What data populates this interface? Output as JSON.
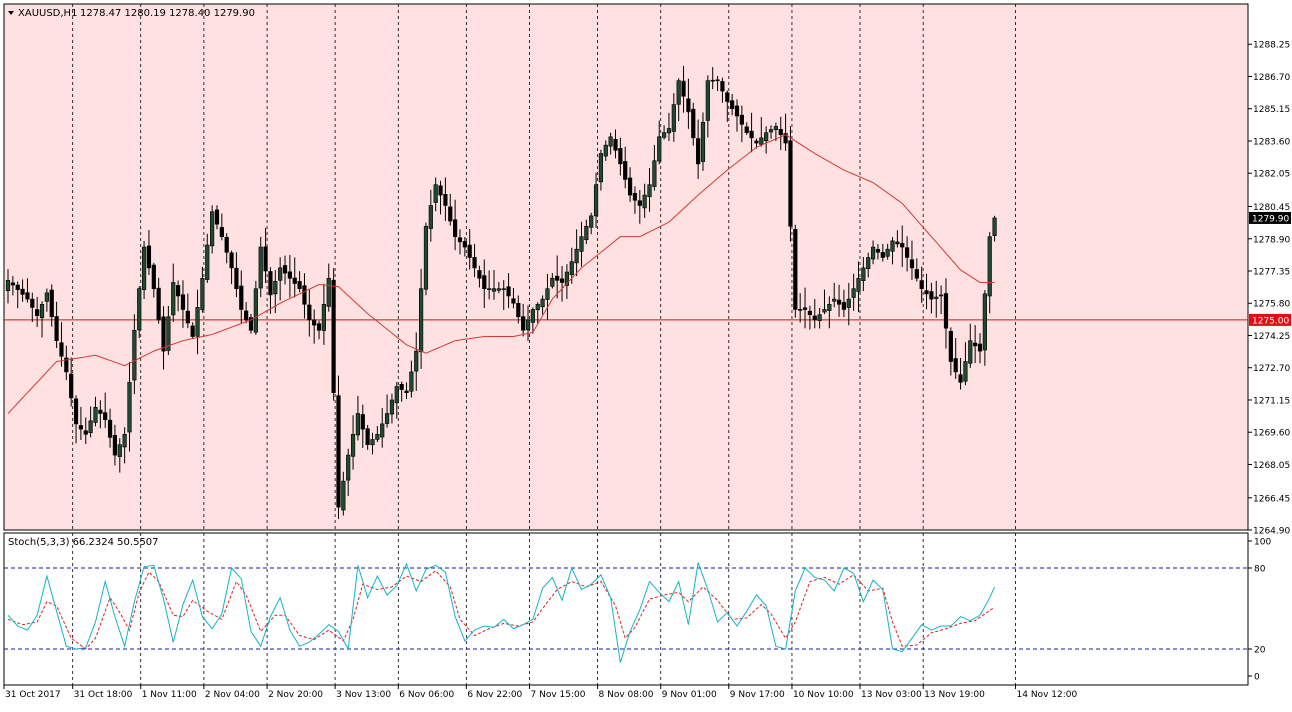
{
  "header": {
    "symbol_label": "XAUUSD,H1",
    "ohlc_label": "1278.47 1280.19 1278.40 1279.90"
  },
  "stoch": {
    "label": "Stoch(5,3,3) 66.2324 50.5507"
  },
  "colors": {
    "chart_background": "#ffe1e1",
    "up_candle": "#1f4a2f",
    "down_candle": "#000000",
    "ma_line": "#d43a3a",
    "horizontal_line": "#e01010",
    "stoch_main": "#14b4c8",
    "stoch_signal": "#e02020",
    "stoch_level": "#1a1aa0"
  },
  "chart_data": [
    {
      "type": "candlestick",
      "ylim": [
        1264.9,
        1289.8
      ],
      "y_ticks": [
        "1288.25",
        "1286.70",
        "1285.15",
        "1283.60",
        "1282.05",
        "1280.45",
        "1278.90",
        "1277.35",
        "1275.80",
        "1274.25",
        "1272.70",
        "1271.15",
        "1269.60",
        "1268.05",
        "1266.45",
        "1264.90"
      ],
      "x_tick_labels": [
        "31 Oct 2017",
        "31 Oct 18:00",
        "1 Nov 11:00",
        "2 Nov 04:00",
        "2 Nov 20:00",
        "3 Nov 13:00",
        "6 Nov 06:00",
        "6 Nov 22:00",
        "7 Nov 15:00",
        "8 Nov 08:00",
        "9 Nov 01:00",
        "9 Nov 17:00",
        "10 Nov 10:00",
        "13 Nov 03:00",
        "13 Nov 19:00",
        "14 Nov 12:00"
      ],
      "current_price": "1279.90",
      "horizontal_line_price": "1275.00",
      "close_path": [
        [
          0,
          1276.9
        ],
        [
          4,
          1276.0
        ],
        [
          6,
          1275.2
        ],
        [
          8,
          1276.3
        ],
        [
          10,
          1274.0
        ],
        [
          12,
          1272.5
        ],
        [
          14,
          1270.0
        ],
        [
          16,
          1269.5
        ],
        [
          18,
          1270.8
        ],
        [
          20,
          1270.2
        ],
        [
          22,
          1268.5
        ],
        [
          24,
          1269.5
        ],
        [
          26,
          1274.5
        ],
        [
          28,
          1278.5
        ],
        [
          30,
          1276.5
        ],
        [
          32,
          1273.5
        ],
        [
          34,
          1276.8
        ],
        [
          36,
          1275.5
        ],
        [
          38,
          1274.2
        ],
        [
          40,
          1277.0
        ],
        [
          42,
          1280.2
        ],
        [
          44,
          1279.0
        ],
        [
          46,
          1277.5
        ],
        [
          48,
          1275.5
        ],
        [
          50,
          1274.5
        ],
        [
          52,
          1278.5
        ],
        [
          54,
          1276.2
        ],
        [
          56,
          1277.5
        ],
        [
          58,
          1277.0
        ],
        [
          60,
          1276.5
        ],
        [
          62,
          1275.0
        ],
        [
          64,
          1274.5
        ],
        [
          66,
          1277.0
        ],
        [
          68,
          1266.0
        ],
        [
          70,
          1268.5
        ],
        [
          72,
          1270.5
        ],
        [
          74,
          1269.0
        ],
        [
          76,
          1269.5
        ],
        [
          78,
          1270.5
        ],
        [
          80,
          1271.8
        ],
        [
          82,
          1271.5
        ],
        [
          84,
          1273.5
        ],
        [
          86,
          1279.5
        ],
        [
          88,
          1281.5
        ],
        [
          90,
          1280.5
        ],
        [
          92,
          1279.0
        ],
        [
          94,
          1278.5
        ],
        [
          96,
          1277.5
        ],
        [
          98,
          1276.5
        ],
        [
          100,
          1276.5
        ],
        [
          102,
          1276.5
        ],
        [
          104,
          1275.8
        ],
        [
          106,
          1274.5
        ],
        [
          108,
          1275.5
        ],
        [
          110,
          1276.0
        ],
        [
          112,
          1277.0
        ],
        [
          114,
          1276.8
        ],
        [
          116,
          1277.8
        ],
        [
          118,
          1279.0
        ],
        [
          120,
          1280.0
        ],
        [
          122,
          1283.0
        ],
        [
          124,
          1283.8
        ],
        [
          126,
          1282.5
        ],
        [
          128,
          1281.0
        ],
        [
          130,
          1280.5
        ],
        [
          132,
          1281.5
        ],
        [
          134,
          1283.8
        ],
        [
          136,
          1284.2
        ],
        [
          138,
          1286.5
        ],
        [
          140,
          1285.0
        ],
        [
          142,
          1282.5
        ],
        [
          144,
          1286.5
        ],
        [
          146,
          1286.5
        ],
        [
          148,
          1285.5
        ],
        [
          150,
          1284.8
        ],
        [
          152,
          1284.0
        ],
        [
          154,
          1283.5
        ],
        [
          156,
          1284.0
        ],
        [
          158,
          1284.3
        ],
        [
          160,
          1283.5
        ],
        [
          162,
          1275.5
        ],
        [
          164,
          1275.5
        ],
        [
          166,
          1275.0
        ],
        [
          168,
          1275.5
        ],
        [
          170,
          1276.0
        ],
        [
          172,
          1275.5
        ],
        [
          174,
          1276.5
        ],
        [
          176,
          1277.5
        ],
        [
          178,
          1278.5
        ],
        [
          180,
          1278.0
        ],
        [
          182,
          1278.8
        ],
        [
          184,
          1278.5
        ],
        [
          186,
          1277.5
        ],
        [
          188,
          1276.5
        ],
        [
          190,
          1276.0
        ],
        [
          192,
          1276.2
        ],
        [
          194,
          1273.0
        ],
        [
          196,
          1272.0
        ],
        [
          198,
          1274.0
        ],
        [
          200,
          1273.5
        ],
        [
          202,
          1279.0
        ],
        [
          203,
          1279.9
        ]
      ],
      "ma_path": [
        [
          0,
          1270.5
        ],
        [
          10,
          1273.0
        ],
        [
          18,
          1273.3
        ],
        [
          24,
          1272.8
        ],
        [
          30,
          1273.5
        ],
        [
          36,
          1274.0
        ],
        [
          42,
          1274.3
        ],
        [
          50,
          1275.0
        ],
        [
          56,
          1275.8
        ],
        [
          64,
          1276.7
        ],
        [
          68,
          1276.6
        ],
        [
          74,
          1275.3
        ],
        [
          82,
          1273.8
        ],
        [
          86,
          1273.4
        ],
        [
          92,
          1274.0
        ],
        [
          98,
          1274.2
        ],
        [
          104,
          1274.2
        ],
        [
          108,
          1274.4
        ],
        [
          112,
          1276.0
        ],
        [
          118,
          1277.5
        ],
        [
          126,
          1279.0
        ],
        [
          130,
          1279.0
        ],
        [
          136,
          1279.7
        ],
        [
          142,
          1281.0
        ],
        [
          148,
          1282.2
        ],
        [
          154,
          1283.3
        ],
        [
          160,
          1283.9
        ],
        [
          166,
          1283.0
        ],
        [
          172,
          1282.2
        ],
        [
          178,
          1281.6
        ],
        [
          184,
          1280.6
        ],
        [
          190,
          1279.0
        ],
        [
          196,
          1277.4
        ],
        [
          200,
          1276.8
        ]
      ]
    },
    {
      "type": "line",
      "name": "Stoch(5,3,3)",
      "ylim": [
        0,
        100
      ],
      "levels": [
        20,
        80
      ],
      "y_ticks": [
        "100",
        "80",
        "20",
        "0"
      ],
      "main_path": [
        [
          0,
          45
        ],
        [
          2,
          37
        ],
        [
          4,
          34
        ],
        [
          6,
          45
        ],
        [
          8,
          74
        ],
        [
          10,
          48
        ],
        [
          12,
          22
        ],
        [
          14,
          20
        ],
        [
          16,
          21
        ],
        [
          18,
          40
        ],
        [
          20,
          70
        ],
        [
          22,
          44
        ],
        [
          24,
          22
        ],
        [
          26,
          55
        ],
        [
          28,
          81
        ],
        [
          30,
          82
        ],
        [
          32,
          57
        ],
        [
          34,
          25
        ],
        [
          36,
          53
        ],
        [
          38,
          71
        ],
        [
          40,
          44
        ],
        [
          42,
          35
        ],
        [
          44,
          46
        ],
        [
          46,
          80
        ],
        [
          48,
          72
        ],
        [
          50,
          33
        ],
        [
          52,
          22
        ],
        [
          54,
          44
        ],
        [
          56,
          58
        ],
        [
          58,
          34
        ],
        [
          60,
          22
        ],
        [
          62,
          25
        ],
        [
          64,
          31
        ],
        [
          66,
          38
        ],
        [
          68,
          33
        ],
        [
          70,
          20
        ],
        [
          72,
          82
        ],
        [
          74,
          58
        ],
        [
          76,
          74
        ],
        [
          78,
          60
        ],
        [
          80,
          67
        ],
        [
          82,
          83
        ],
        [
          84,
          63
        ],
        [
          86,
          79
        ],
        [
          88,
          82
        ],
        [
          90,
          77
        ],
        [
          92,
          44
        ],
        [
          94,
          26
        ],
        [
          96,
          34
        ],
        [
          98,
          37
        ],
        [
          100,
          36
        ],
        [
          102,
          42
        ],
        [
          104,
          35
        ],
        [
          106,
          38
        ],
        [
          108,
          42
        ],
        [
          110,
          65
        ],
        [
          112,
          73
        ],
        [
          114,
          56
        ],
        [
          116,
          80
        ],
        [
          118,
          64
        ],
        [
          120,
          68
        ],
        [
          122,
          75
        ],
        [
          124,
          58
        ],
        [
          126,
          10
        ],
        [
          128,
          33
        ],
        [
          130,
          49
        ],
        [
          132,
          70
        ],
        [
          134,
          62
        ],
        [
          136,
          55
        ],
        [
          138,
          70
        ],
        [
          140,
          38
        ],
        [
          142,
          84
        ],
        [
          144,
          64
        ],
        [
          146,
          40
        ],
        [
          148,
          47
        ],
        [
          150,
          37
        ],
        [
          152,
          48
        ],
        [
          154,
          60
        ],
        [
          156,
          52
        ],
        [
          158,
          22
        ],
        [
          160,
          20
        ],
        [
          162,
          63
        ],
        [
          164,
          80
        ],
        [
          166,
          73
        ],
        [
          168,
          71
        ],
        [
          170,
          63
        ],
        [
          172,
          80
        ],
        [
          174,
          76
        ],
        [
          176,
          55
        ],
        [
          178,
          71
        ],
        [
          180,
          64
        ],
        [
          182,
          20
        ],
        [
          184,
          18
        ],
        [
          186,
          28
        ],
        [
          188,
          38
        ],
        [
          190,
          34
        ],
        [
          192,
          37
        ],
        [
          194,
          37
        ],
        [
          196,
          44
        ],
        [
          198,
          41
        ],
        [
          200,
          45
        ],
        [
          202,
          58
        ],
        [
          203,
          66
        ]
      ],
      "signal_path": [
        [
          0,
          42
        ],
        [
          3,
          38
        ],
        [
          6,
          40
        ],
        [
          8,
          55
        ],
        [
          10,
          52
        ],
        [
          13,
          28
        ],
        [
          16,
          20
        ],
        [
          18,
          28
        ],
        [
          21,
          58
        ],
        [
          23,
          47
        ],
        [
          25,
          34
        ],
        [
          27,
          62
        ],
        [
          29,
          77
        ],
        [
          31,
          70
        ],
        [
          34,
          45
        ],
        [
          36,
          44
        ],
        [
          38,
          56
        ],
        [
          41,
          48
        ],
        [
          44,
          42
        ],
        [
          47,
          70
        ],
        [
          49,
          60
        ],
        [
          52,
          33
        ],
        [
          55,
          45
        ],
        [
          57,
          45
        ],
        [
          60,
          30
        ],
        [
          63,
          27
        ],
        [
          66,
          34
        ],
        [
          69,
          26
        ],
        [
          71,
          42
        ],
        [
          73,
          68
        ],
        [
          76,
          64
        ],
        [
          79,
          66
        ],
        [
          82,
          74
        ],
        [
          85,
          70
        ],
        [
          88,
          78
        ],
        [
          91,
          66
        ],
        [
          93,
          42
        ],
        [
          96,
          30
        ],
        [
          99,
          35
        ],
        [
          102,
          39
        ],
        [
          105,
          37
        ],
        [
          108,
          40
        ],
        [
          110,
          50
        ],
        [
          113,
          64
        ],
        [
          116,
          70
        ],
        [
          119,
          66
        ],
        [
          122,
          70
        ],
        [
          125,
          52
        ],
        [
          127,
          28
        ],
        [
          129,
          36
        ],
        [
          132,
          57
        ],
        [
          135,
          60
        ],
        [
          138,
          62
        ],
        [
          140,
          55
        ],
        [
          143,
          66
        ],
        [
          146,
          56
        ],
        [
          149,
          42
        ],
        [
          152,
          43
        ],
        [
          155,
          53
        ],
        [
          157,
          46
        ],
        [
          160,
          28
        ],
        [
          162,
          40
        ],
        [
          165,
          70
        ],
        [
          168,
          73
        ],
        [
          171,
          68
        ],
        [
          174,
          75
        ],
        [
          177,
          63
        ],
        [
          180,
          65
        ],
        [
          182,
          40
        ],
        [
          184,
          22
        ],
        [
          187,
          23
        ],
        [
          190,
          32
        ],
        [
          193,
          35
        ],
        [
          196,
          39
        ],
        [
          199,
          41
        ],
        [
          203,
          51
        ]
      ]
    }
  ]
}
